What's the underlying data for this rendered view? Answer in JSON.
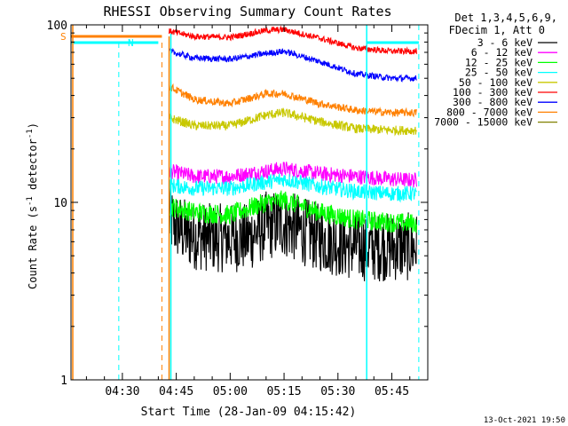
{
  "chart_data": {
    "type": "line",
    "title": "RHESSI Observing Summary Count Rates",
    "xlabel": "Start Time (28-Jan-09 04:15:42)",
    "ylabel_prefix": "Count Rate (s",
    "ylabel_sup": "-1",
    "ylabel_mid": " detector",
    "ylabel_sup2": "-1",
    "ylabel_suffix": ")",
    "y_scale": "log",
    "ylim": [
      1,
      100
    ],
    "xlim": [
      "04:15:42",
      "05:55:00"
    ],
    "x_ticks": [
      "04:30",
      "04:45",
      "05:00",
      "05:15",
      "05:30",
      "05:45"
    ],
    "y_ticks": [
      "1",
      "10",
      "100"
    ],
    "legend_header": [
      "Det 1,3,4,5,6,9,",
      "FDecim 1, Att 0"
    ],
    "legend_placement": "right",
    "timestamp": "13-Oct-2021 19:50",
    "flags": [
      {
        "label": "S",
        "color": "#ff8000"
      },
      {
        "label": "N",
        "color": "#00ffff"
      }
    ],
    "series": [
      {
        "name": "3 - 6 keV",
        "color": "#000000",
        "x": [
          "04:43",
          "04:48",
          "04:55",
          "05:05",
          "05:10",
          "05:15",
          "05:25",
          "05:35",
          "05:45",
          "05:52"
        ],
        "y": [
          8.0,
          6.6,
          6.3,
          6.3,
          7.4,
          7.6,
          6.3,
          5.6,
          5.6,
          5.6
        ]
      },
      {
        "name": "6 - 12 keV",
        "color": "#ff00ff",
        "x": [
          "04:43",
          "04:50",
          "05:00",
          "05:10",
          "05:15",
          "05:25",
          "05:35",
          "05:45",
          "05:52"
        ],
        "y": [
          15.0,
          14.0,
          14.0,
          15.0,
          15.5,
          14.5,
          14.0,
          13.5,
          13.3
        ]
      },
      {
        "name": "12 - 25 keV",
        "color": "#00ff00",
        "x": [
          "04:43",
          "04:50",
          "05:00",
          "05:10",
          "05:15",
          "05:25",
          "05:35",
          "05:45",
          "05:52"
        ],
        "y": [
          9.5,
          8.8,
          8.5,
          10.0,
          10.3,
          8.8,
          8.0,
          7.7,
          7.6
        ]
      },
      {
        "name": "25 - 50 keV",
        "color": "#00ffff",
        "x": [
          "04:43",
          "04:50",
          "05:00",
          "05:10",
          "05:15",
          "05:25",
          "05:35",
          "05:45",
          "05:52"
        ],
        "y": [
          12.5,
          12.0,
          12.0,
          13.0,
          13.5,
          12.3,
          11.5,
          11.2,
          11.2
        ]
      },
      {
        "name": "50 - 100 keV",
        "color": "#c8c800",
        "x": [
          "04:43",
          "04:50",
          "05:00",
          "05:10",
          "05:15",
          "05:25",
          "05:35",
          "05:45",
          "05:52"
        ],
        "y": [
          30.0,
          27.0,
          27.0,
          31.0,
          32.0,
          28.5,
          26.0,
          25.5,
          25.5
        ]
      },
      {
        "name": "100 - 300 keV",
        "color": "#ff0000",
        "x": [
          "04:43",
          "04:50",
          "05:00",
          "05:10",
          "05:15",
          "05:25",
          "05:35",
          "05:45",
          "05:52"
        ],
        "y": [
          92.0,
          86.0,
          85.0,
          93.0,
          94.0,
          84.0,
          74.0,
          71.0,
          71.0
        ]
      },
      {
        "name": "300 - 800 keV",
        "color": "#0000ff",
        "x": [
          "04:43",
          "04:50",
          "05:00",
          "05:10",
          "05:15",
          "05:25",
          "05:35",
          "05:45",
          "05:52"
        ],
        "y": [
          71.0,
          65.0,
          64.0,
          69.0,
          71.0,
          62.0,
          53.0,
          50.0,
          50.0
        ]
      },
      {
        "name": "800 - 7000 keV",
        "color": "#ff8000",
        "x": [
          "04:43",
          "04:50",
          "05:00",
          "05:10",
          "05:15",
          "05:25",
          "05:35",
          "05:45",
          "05:52"
        ],
        "y": [
          45.0,
          38.0,
          36.0,
          41.0,
          41.0,
          36.0,
          33.0,
          32.0,
          32.0
        ]
      },
      {
        "name": "7000 - 15000 keV",
        "color": "#808000",
        "x": [],
        "y": []
      }
    ]
  }
}
